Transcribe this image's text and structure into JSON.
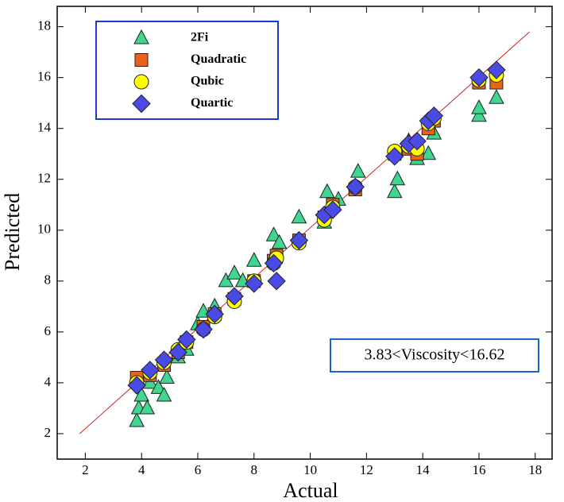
{
  "chart_data": {
    "type": "scatter",
    "xlabel": "Actual",
    "ylabel": "Predicted",
    "xlim": [
      1,
      18.6
    ],
    "ylim": [
      1,
      18.8
    ],
    "xticks": [
      2,
      4,
      6,
      8,
      10,
      12,
      14,
      16,
      18
    ],
    "yticks": [
      2,
      4,
      6,
      8,
      10,
      12,
      14,
      16,
      18
    ],
    "annotation": "3.83<Viscosity<16.62",
    "fit_line": {
      "color": "#cc2222",
      "x": [
        1.8,
        17.8
      ],
      "y": [
        2,
        17.8
      ]
    },
    "legend": "upper left",
    "series": [
      {
        "name": "2Fi",
        "marker": "triangle",
        "color": "#3fd68f",
        "x": [
          3.83,
          3.9,
          4.0,
          4.2,
          4.3,
          4.6,
          4.8,
          4.9,
          5.3,
          5.6,
          6.0,
          6.2,
          6.6,
          7.0,
          7.3,
          7.6,
          8.0,
          8.7,
          8.9,
          9.6,
          10.5,
          10.6,
          11.0,
          11.7,
          13.0,
          13.1,
          13.5,
          13.8,
          14.2,
          14.4,
          16.0,
          16.0,
          16.62
        ],
        "values": [
          2.5,
          3.0,
          3.5,
          3.0,
          4.0,
          3.8,
          3.5,
          4.2,
          5.0,
          5.3,
          6.3,
          6.8,
          7.0,
          8.0,
          8.3,
          8.0,
          8.8,
          9.8,
          9.5,
          10.5,
          10.3,
          11.5,
          11.2,
          12.3,
          11.5,
          12.0,
          13.5,
          12.8,
          13.0,
          13.8,
          14.5,
          14.8,
          15.2
        ]
      },
      {
        "name": "Quadratic",
        "marker": "square",
        "color": "#e8641b",
        "x": [
          3.83,
          4.3,
          4.8,
          5.3,
          5.6,
          6.2,
          6.6,
          7.3,
          8.0,
          8.7,
          8.8,
          9.6,
          10.5,
          10.8,
          11.6,
          13.0,
          13.5,
          13.8,
          14.2,
          14.4,
          16.0,
          16.62
        ],
        "values": [
          4.2,
          4.3,
          4.7,
          5.2,
          5.6,
          6.2,
          6.7,
          7.3,
          8.0,
          8.8,
          9.0,
          9.6,
          10.5,
          11.0,
          11.6,
          13.0,
          13.2,
          13.0,
          14.0,
          14.3,
          15.8,
          15.8
        ]
      },
      {
        "name": "Qubic",
        "marker": "circle",
        "color": "#ffff00",
        "x": [
          3.83,
          4.3,
          4.8,
          5.3,
          5.6,
          6.2,
          6.6,
          7.3,
          8.0,
          8.7,
          8.8,
          9.6,
          10.5,
          10.8,
          11.6,
          13.0,
          13.5,
          13.8,
          14.2,
          14.4,
          16.0,
          16.62
        ],
        "values": [
          4.0,
          4.4,
          4.8,
          5.3,
          5.6,
          6.1,
          6.6,
          7.2,
          8.0,
          8.7,
          8.9,
          9.5,
          10.4,
          10.9,
          11.7,
          13.1,
          13.3,
          13.2,
          14.2,
          14.4,
          15.9,
          16.1
        ]
      },
      {
        "name": "Quartic",
        "marker": "diamond",
        "color": "#4a4ae6",
        "x": [
          3.83,
          4.3,
          4.8,
          5.3,
          5.6,
          6.2,
          6.6,
          7.3,
          8.0,
          8.7,
          8.8,
          9.6,
          10.5,
          10.8,
          11.6,
          13.0,
          13.5,
          13.8,
          14.2,
          14.4,
          16.0,
          16.62
        ],
        "values": [
          3.9,
          4.5,
          4.9,
          5.2,
          5.7,
          6.1,
          6.7,
          7.4,
          7.9,
          8.7,
          8.0,
          9.6,
          10.6,
          10.8,
          11.7,
          12.9,
          13.4,
          13.5,
          14.3,
          14.5,
          16.0,
          16.3
        ]
      }
    ]
  }
}
